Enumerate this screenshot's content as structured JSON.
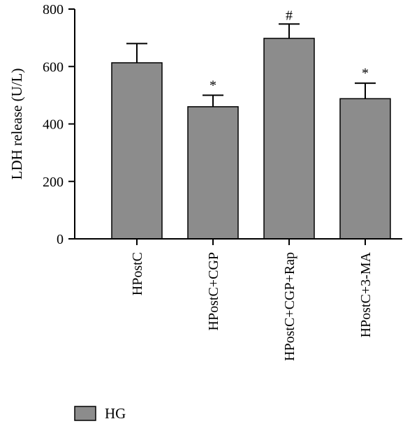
{
  "chart_data": {
    "type": "bar",
    "title": "",
    "xlabel": "",
    "ylabel": "LDH release (U/L)",
    "ylim": [
      0,
      800
    ],
    "yticks": [
      0,
      200,
      400,
      600,
      800
    ],
    "categories": [
      "HPostC",
      "HPostC+CGP",
      "HPostC+CGP+Rap",
      "HPostC+3-MA"
    ],
    "series": [
      {
        "name": "HG",
        "color": "#8c8c8c",
        "values": [
          613,
          460,
          698,
          488
        ],
        "errors": [
          67,
          40,
          50,
          54
        ],
        "significance": [
          "",
          "*",
          "#",
          "*"
        ]
      }
    ],
    "legend_position": "bottom-left",
    "grid": false
  }
}
